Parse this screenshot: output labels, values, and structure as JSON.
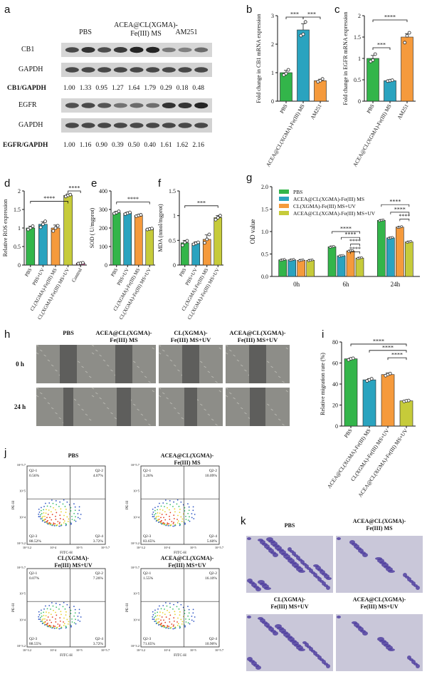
{
  "colors": {
    "green": "#33b54a",
    "teal": "#2aa3bf",
    "orange": "#f59a3c",
    "olive": "#c6cb3a",
    "pink": "#dd4e9a",
    "grey": "#9a9a9a"
  },
  "panel_labels": [
    "a",
    "b",
    "c",
    "d",
    "e",
    "f",
    "g",
    "h",
    "i",
    "j",
    "k"
  ],
  "blot": {
    "headers": [
      "PBS",
      "ACEA@CL(XGMA)-\nFe(III) MS",
      "AM251"
    ],
    "header_pbs": "PBS",
    "header_acea_1": "ACEA@CL(XGMA)-",
    "header_acea_2": "Fe(III) MS",
    "header_am": "AM251",
    "row1": "CB1",
    "row2": "GAPDH",
    "ratio1_label": "CB1/GAPDH",
    "ratio1_values": [
      "1.00",
      "1.33",
      "0.95",
      "1.27",
      "1.64",
      "1.79",
      "0.29",
      "0.18",
      "0.48"
    ],
    "row3": "EGFR",
    "row4": "GAPDH",
    "ratio2_label": "EGFR/GAPDH",
    "ratio2_values": [
      "1.00",
      "1.16",
      "0.90",
      "0.39",
      "0.50",
      "0.40",
      "1.61",
      "1.62",
      "2.16"
    ]
  },
  "scratch": {
    "headers": [
      "PBS",
      "ACEA@CL(XGMA)-",
      "CL(XGMA)-",
      "ACEA@CL(XGMA)-"
    ],
    "headers2": [
      "",
      "Fe(III) MS",
      "Fe(III) MS+UV",
      "Fe(III) MS+UV"
    ],
    "rows": [
      "0 h",
      "24 h"
    ]
  },
  "flow": {
    "titles": [
      "PBS",
      "ACEA@CL(XGMA)-\nFe(III) MS",
      "CL(XGMA)-\nFe(III) MS+UV",
      "ACEA@CL(XGMA)-\nFe(III) MS+UV"
    ],
    "title_lines": [
      [
        "PBS"
      ],
      [
        "ACEA@CL(XGMA)-",
        "Fe(III) MS"
      ],
      [
        "CL(XGMA)-",
        "Fe(III) MS+UV"
      ],
      [
        "ACEA@CL(XGMA)-",
        "Fe(III) MS+UV"
      ]
    ],
    "quadrants": [
      {
        "q1": "Q2-1\n0.56%",
        "q2": "Q2-2\n4.07%",
        "q3": "Q2-3\n88.52%",
        "q4": "Q2-4\n3.72%"
      },
      {
        "q1": "Q2-1\n1.26%",
        "q2": "Q2-2\n10.09%",
        "q3": "Q2-3\n83.65%",
        "q4": "Q2-4\n5.60%"
      },
      {
        "q1": "Q2-1\n0.07%",
        "q2": "Q2-2\n7.26%",
        "q3": "Q2-3\n88.55%",
        "q4": "Q2-4\n3.72%"
      },
      {
        "q1": "Q2-1\n1.55%",
        "q2": "Q2-2\n16.10%",
        "q3": "Q2-3\n71.65%",
        "q4": "Q2-4\n10.90%"
      }
    ],
    "xaxis": "FITC-H",
    "yaxis": "PE-H",
    "xticks": [
      "10^3.2",
      "10^4",
      "10^5",
      "10^5.7"
    ],
    "yticks": [
      "10^3.2",
      "10^4",
      "10^5",
      "10^5.7"
    ]
  },
  "transwell": {
    "titles": [
      [
        "PBS"
      ],
      [
        "ACEA@CL(XGMA)-",
        "Fe(III) MS"
      ],
      [
        "CL(XGMA)-",
        "Fe(III) MS+UV"
      ],
      [
        "ACEA@CL(XGMA)-",
        "Fe(III) MS+UV"
      ]
    ]
  },
  "chart_data": [
    {
      "id": "b",
      "type": "bar",
      "categories": [
        "PBS",
        "ACEA@CL(XGMA)-Fe(III) MS",
        "AM251"
      ],
      "values": [
        1.0,
        2.5,
        0.72
      ],
      "errors": [
        0.08,
        0.22,
        0.05
      ],
      "points": [
        [
          0.92,
          0.97,
          1.1
        ],
        [
          2.3,
          2.35,
          2.78
        ],
        [
          0.68,
          0.72,
          0.78
        ]
      ],
      "ylabel": "Fold change in CB1 mRNA expression",
      "ylim": [
        0,
        3
      ],
      "yticks": [
        0,
        1,
        2,
        3
      ],
      "colors": [
        "green",
        "teal",
        "orange"
      ],
      "significance": [
        {
          "from": 0,
          "to": 1,
          "label": "***",
          "y": 2.95
        },
        {
          "from": 1,
          "to": 2,
          "label": "***",
          "y": 2.95
        }
      ]
    },
    {
      "id": "c",
      "type": "bar",
      "categories": [
        "PBS",
        "ACEA@CL(XGMA)-Fe(III) MS",
        "AM251"
      ],
      "values": [
        1.0,
        0.48,
        1.5
      ],
      "errors": [
        0.07,
        0.02,
        0.08
      ],
      "points": [
        [
          0.93,
          0.96,
          1.1
        ],
        [
          0.47,
          0.48,
          0.49
        ],
        [
          1.37,
          1.53,
          1.6
        ]
      ],
      "ylabel": "Fold change in EGFR mRNA expression",
      "ylim": [
        0,
        2.0
      ],
      "yticks": [
        0.0,
        0.5,
        1.0,
        1.5,
        2.0
      ],
      "colors": [
        "green",
        "teal",
        "orange"
      ],
      "significance": [
        {
          "from": 0,
          "to": 1,
          "label": "***",
          "y": 1.25
        },
        {
          "from": 0,
          "to": 2,
          "label": "****",
          "y": 1.9
        }
      ]
    },
    {
      "id": "d",
      "type": "bar",
      "categories": [
        "PBS",
        "PBS+UV",
        "CL(XGMA)-Fe(III) MS",
        "CL(XGMA)-Fe(III) MS+UV",
        "Control"
      ],
      "values": [
        1.0,
        1.1,
        1.0,
        1.88,
        0.05
      ],
      "errors": [
        0.05,
        0.07,
        0.08,
        0.04,
        0.01
      ],
      "points": [
        [
          0.96,
          1.0,
          1.05
        ],
        [
          1.02,
          1.1,
          1.18
        ],
        [
          0.92,
          1.0,
          1.06
        ],
        [
          1.85,
          1.88,
          1.9
        ],
        [
          0.04,
          0.05,
          0.06
        ]
      ],
      "ylabel": "Relative ROS expression",
      "ylim": [
        0,
        2.0
      ],
      "yticks": [
        0.0,
        0.5,
        1.0,
        1.5,
        2.0
      ],
      "colors": [
        "green",
        "teal",
        "orange",
        "olive",
        "pink"
      ],
      "significance": [
        {
          "from": 0,
          "to": 3,
          "label": "****",
          "y": 1.72
        },
        {
          "from": 3,
          "to": 4,
          "label": "****",
          "y": 2.0
        }
      ]
    },
    {
      "id": "e",
      "type": "bar",
      "categories": [
        "PBS",
        "PBS+UV",
        "CL(XGMA)-Fe(III) MS",
        "CL(XGMA)-Fe(III) MS+UV"
      ],
      "values": [
        282,
        280,
        268,
        195
      ],
      "errors": [
        8,
        5,
        4,
        3
      ],
      "points": [
        [
          278,
          283,
          290
        ],
        [
          275,
          280,
          284
        ],
        [
          264,
          268,
          271
        ],
        [
          192,
          195,
          197
        ]
      ],
      "ylabel": "SOD ( U/mgprot)",
      "ylim": [
        0,
        400
      ],
      "yticks": [
        0,
        100,
        200,
        300,
        400
      ],
      "colors": [
        "green",
        "teal",
        "orange",
        "olive"
      ],
      "significance": [
        {
          "from": 0,
          "to": 3,
          "label": "****",
          "y": 340
        }
      ]
    },
    {
      "id": "f",
      "type": "bar",
      "categories": [
        "PBS",
        "PBS+UV",
        "CL(XGMA)-Fe(III) MS",
        "CL(XGMA)-Fe(III) MS+UV"
      ],
      "values": [
        0.45,
        0.44,
        0.52,
        0.96
      ],
      "errors": [
        0.05,
        0.03,
        0.09,
        0.04
      ],
      "points": [
        [
          0.4,
          0.46,
          0.49
        ],
        [
          0.42,
          0.44,
          0.46
        ],
        [
          0.45,
          0.52,
          0.62
        ],
        [
          0.92,
          0.96,
          1.0
        ]
      ],
      "ylabel": "MDA (nmol/mgprot)",
      "ylim": [
        0,
        1.5
      ],
      "yticks": [
        0.0,
        0.5,
        1.0,
        1.5
      ],
      "colors": [
        "green",
        "teal",
        "orange",
        "olive"
      ],
      "significance": [
        {
          "from": 0,
          "to": 3,
          "label": "***",
          "y": 1.2
        }
      ]
    },
    {
      "id": "g",
      "type": "bar",
      "categories": [
        "0h",
        "6h",
        "24h"
      ],
      "series": [
        {
          "name": "PBS",
          "values": [
            0.37,
            0.66,
            1.25
          ],
          "color": "green"
        },
        {
          "name": "ACEA@CL(XGMA)-Fe(III) MS",
          "values": [
            0.37,
            0.46,
            0.86
          ],
          "color": "teal"
        },
        {
          "name": "CL(XGMA)-Fe(III) MS+UV",
          "values": [
            0.36,
            0.57,
            1.1
          ],
          "color": "orange"
        },
        {
          "name": "ACEA@CL(XGMA)-Fe(III) MS+UV",
          "values": [
            0.36,
            0.41,
            0.77
          ],
          "color": "olive"
        }
      ],
      "ylabel": "OD value",
      "ylim": [
        0,
        2.0
      ],
      "yticks": [
        0.0,
        0.5,
        1.0,
        1.5,
        2.0
      ],
      "legend": "top-left",
      "significance_labels": [
        "****",
        "****",
        "****",
        "****",
        "****",
        "****",
        "****"
      ]
    },
    {
      "id": "i",
      "type": "bar",
      "categories": [
        "PBS",
        "ACEA@CL(XGMA)-Fe(III) MS",
        "CL(XGMA)-Fe(III) MS+UV",
        "ACEA@CL(XGMA)-Fe(III) MS+UV"
      ],
      "values": [
        64,
        44,
        49,
        24
      ],
      "errors": [
        0.8,
        1.2,
        1.5,
        0.5
      ],
      "points": [
        [
          63,
          64,
          64.5
        ],
        [
          43,
          44,
          45
        ],
        [
          48,
          49,
          50
        ],
        [
          23.5,
          24,
          24.3
        ]
      ],
      "ylabel": "Relative migration rate (%)",
      "ylim": [
        0,
        80
      ],
      "yticks": [
        0,
        20,
        40,
        60,
        80
      ],
      "colors": [
        "green",
        "teal",
        "orange",
        "olive"
      ],
      "significance": [
        {
          "from": 0,
          "to": 3,
          "label": "****",
          "y": 78
        },
        {
          "from": 1,
          "to": 3,
          "label": "****",
          "y": 72
        },
        {
          "from": 2,
          "to": 3,
          "label": "****",
          "y": 65
        }
      ]
    }
  ]
}
